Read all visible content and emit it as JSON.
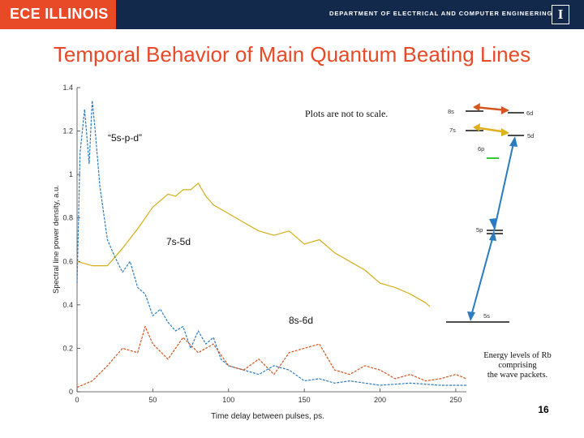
{
  "header": {
    "logo": "ECE ILLINOIS",
    "department": "DEPARTMENT OF ELECTRICAL AND COMPUTER ENGINEERING",
    "block_i": "I"
  },
  "slide": {
    "title": "Temporal Behavior of Main Quantum Beating Lines",
    "page_number": "16"
  },
  "colors": {
    "brand_orange": "#e84a27",
    "brand_navy": "#13294b",
    "series_gold": "#d4ae1a",
    "series_blue": "#2a7bbf",
    "series_orange": "#d4561e"
  },
  "chart_data": {
    "type": "line",
    "xlabel": "Time delay between pulses, ps.",
    "ylabel": "Spectral line power density, a.u.",
    "xlim": [
      0,
      257
    ],
    "ylim": [
      0,
      1.4
    ],
    "xticks": [
      "0",
      "50",
      "100",
      "150",
      "200",
      "250"
    ],
    "yticks": [
      "0",
      "0.2",
      "0.4",
      "0.6",
      "0.8",
      "1",
      "1.2",
      "1.4"
    ],
    "grid": false,
    "annotations": {
      "five_s_p_d": "“5s-p-d”",
      "seven_s_five_d": "7s-5d",
      "eight_s_six_d": "8s-6d",
      "not_to_scale": "Plots are not to scale."
    },
    "series": [
      {
        "label_ref": "7s-5d",
        "color": "#d4ae1a",
        "x": [
          0,
          10,
          20,
          30,
          40,
          50,
          55,
          60,
          65,
          70,
          75,
          80,
          85,
          90,
          95,
          100,
          110,
          120,
          130,
          140,
          150,
          160,
          170,
          180,
          190,
          200,
          210,
          220,
          230,
          240,
          250,
          257
        ],
        "y": [
          0.6,
          0.58,
          0.58,
          0.66,
          0.75,
          0.85,
          0.88,
          0.91,
          0.9,
          0.93,
          0.93,
          0.96,
          0.9,
          0.86,
          0.84,
          0.82,
          0.78,
          0.74,
          0.72,
          0.74,
          0.68,
          0.7,
          0.64,
          0.6,
          0.56,
          0.5,
          0.48,
          0.45,
          0.41,
          0.35,
          0.3,
          0.28
        ]
      },
      {
        "label_ref": "“5s-p-d”",
        "color": "#2a7bbf",
        "x": [
          0,
          2,
          5,
          8,
          10,
          12,
          15,
          18,
          20,
          25,
          30,
          35,
          40,
          45,
          50,
          55,
          60,
          65,
          70,
          75,
          80,
          85,
          90,
          95,
          100,
          110,
          120,
          130,
          140,
          150,
          160,
          170,
          180,
          190,
          200,
          220,
          240,
          257
        ],
        "y": [
          0.5,
          1.1,
          1.3,
          1.05,
          1.34,
          1.2,
          0.95,
          0.8,
          0.7,
          0.62,
          0.55,
          0.6,
          0.48,
          0.45,
          0.35,
          0.38,
          0.32,
          0.28,
          0.3,
          0.2,
          0.28,
          0.22,
          0.25,
          0.15,
          0.12,
          0.1,
          0.08,
          0.12,
          0.1,
          0.05,
          0.06,
          0.04,
          0.05,
          0.04,
          0.03,
          0.04,
          0.03,
          0.03
        ]
      },
      {
        "label_ref": "8s-6d",
        "color": "#d4561e",
        "x": [
          0,
          10,
          20,
          30,
          40,
          45,
          50,
          60,
          70,
          80,
          90,
          100,
          110,
          120,
          130,
          140,
          150,
          160,
          170,
          180,
          190,
          200,
          210,
          220,
          230,
          240,
          250,
          257
        ],
        "y": [
          0.02,
          0.05,
          0.12,
          0.2,
          0.18,
          0.3,
          0.22,
          0.15,
          0.25,
          0.18,
          0.22,
          0.12,
          0.1,
          0.15,
          0.08,
          0.18,
          0.2,
          0.22,
          0.1,
          0.08,
          0.12,
          0.1,
          0.06,
          0.08,
          0.05,
          0.06,
          0.08,
          0.06
        ]
      }
    ]
  },
  "energy_diagram": {
    "levels": [
      "8s",
      "6d",
      "7s",
      "5d",
      "6p",
      "5p",
      "5s"
    ],
    "caption": "Energy levels of Rb comprising the wave packets."
  }
}
